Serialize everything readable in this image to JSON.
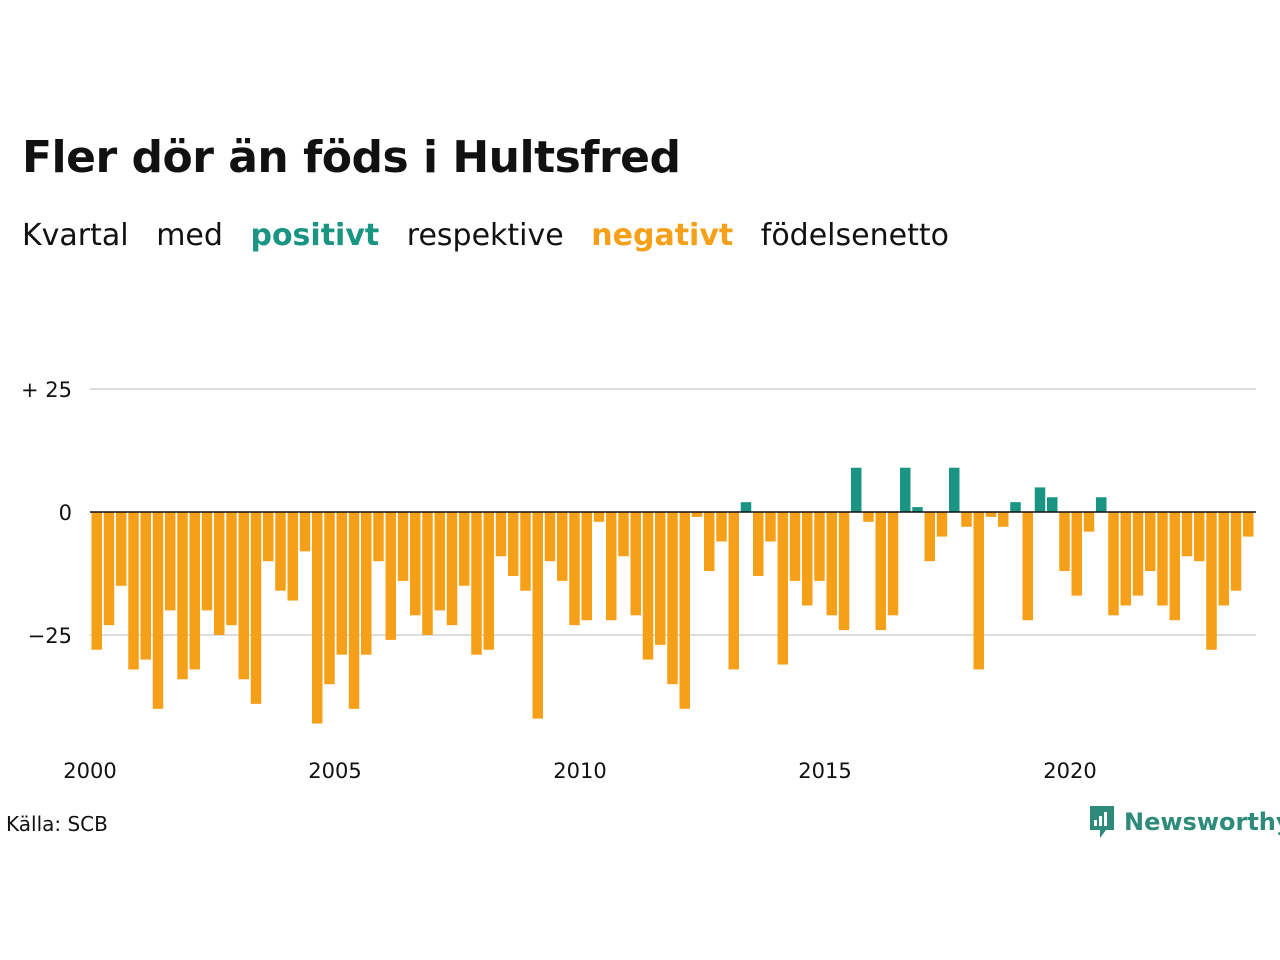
{
  "title": "Fler dör än föds i Hultsfred",
  "subtitle": {
    "word1": "Kvartal",
    "word2": "med",
    "positive_word": "positivt",
    "word4": "respektive",
    "negative_word": "negativt",
    "word6": "födelsenetto"
  },
  "colors": {
    "positive": "#1a9584",
    "negative": "#f6a01a",
    "grid": "#dddddd",
    "axis": "#111111",
    "brand": "#2e8b7a"
  },
  "source": "Källa: SCB",
  "brand": {
    "name": "Newsworthy",
    "icon": "newsworthy-logo-icon"
  },
  "chart_data": {
    "type": "bar",
    "x_start": "2000 Q1",
    "ylim": [
      -42,
      28
    ],
    "yticks": [
      {
        "value": 25,
        "label": "+ 25"
      },
      {
        "value": 0,
        "label": "0"
      },
      {
        "value": -25,
        "label": "−25"
      }
    ],
    "xticks": [
      {
        "index": 0,
        "label": "2000"
      },
      {
        "index": 20,
        "label": "2005"
      },
      {
        "index": 40,
        "label": "2010"
      },
      {
        "index": 60,
        "label": "2015"
      },
      {
        "index": 80,
        "label": "2020"
      }
    ],
    "grid": true,
    "values": [
      -28,
      -23,
      -15,
      -32,
      -30,
      -40,
      -20,
      -34,
      -32,
      -20,
      -25,
      -23,
      -34,
      -39,
      -10,
      -16,
      -18,
      -8,
      -43,
      -35,
      -29,
      -40,
      -29,
      -10,
      -26,
      -14,
      -21,
      -25,
      -20,
      -23,
      -15,
      -29,
      -28,
      -9,
      -13,
      -16,
      -42,
      -10,
      -14,
      -23,
      -22,
      -2,
      -22,
      -9,
      -21,
      -30,
      -27,
      -35,
      -40,
      -1,
      -12,
      -6,
      -32,
      2,
      -13,
      -6,
      -31,
      -14,
      -19,
      -14,
      -21,
      -24,
      9,
      -2,
      -24,
      -21,
      9,
      1,
      -10,
      -5,
      9,
      -3,
      -32,
      -1,
      -3,
      2,
      -22,
      5,
      3,
      -12,
      -17,
      -4,
      3,
      -21,
      -19,
      -17,
      -12,
      -19,
      -22,
      -9,
      -10,
      -28,
      -19,
      -16,
      -5
    ]
  }
}
